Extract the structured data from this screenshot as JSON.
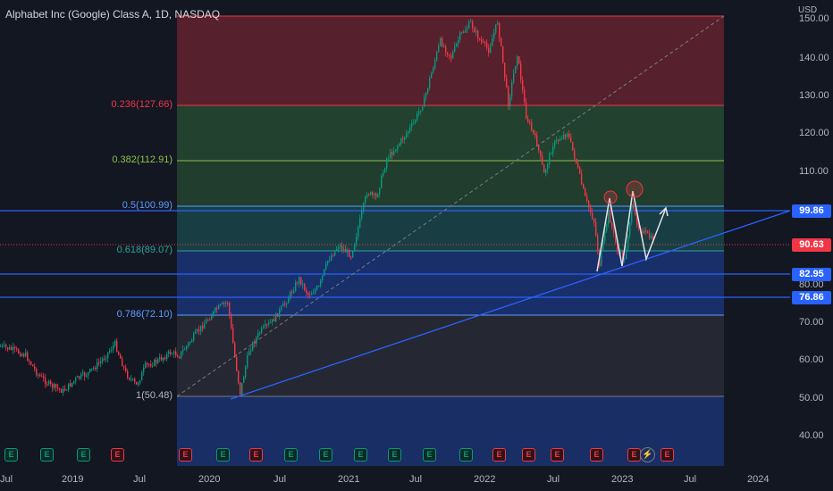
{
  "header": {
    "title": "Alphabet Inc (Google) Class A, 1D, NASDAQ",
    "currency": "USD"
  },
  "price_axis": {
    "labels": [
      "150.00",
      "140.00",
      "130.00",
      "120.00",
      "110.00",
      "100.00",
      "90.00",
      "80.00",
      "70.00",
      "60.00",
      "50.00",
      "40.00"
    ]
  },
  "time_axis": {
    "labels": [
      "Jul",
      "2019",
      "Jul",
      "2020",
      "Jul",
      "2021",
      "Jul",
      "2022",
      "Jul",
      "2023",
      "Jul",
      "2024"
    ]
  },
  "fibonacci": {
    "levels": [
      {
        "label": "0.236(127.66)",
        "color": "#f23645"
      },
      {
        "label": "0.382(112.91)",
        "color": "#8bc34a"
      },
      {
        "label": "0.5(100.99)",
        "color": "#5d9bff"
      },
      {
        "label": "0.618(89.07)",
        "color": "#26a69a"
      },
      {
        "label": "0.786(72.10)",
        "color": "#5d9bff"
      },
      {
        "label": "1(50.48)",
        "color": "#b2b5be"
      }
    ],
    "zone_colors": [
      "#f23645",
      "#4caf50",
      "#26a69a",
      "#2962ff",
      "#787b86",
      "#2962ff"
    ]
  },
  "price_tags": [
    {
      "value": "99.86",
      "color": "#2962ff"
    },
    {
      "value": "90.63",
      "color": "#f23645"
    },
    {
      "value": "82.95",
      "color": "#2962ff"
    },
    {
      "value": "76.86",
      "color": "#2962ff"
    }
  ],
  "colors": {
    "up": "#089981",
    "down": "#f23645",
    "background": "#131722",
    "trendline": "#2962ff"
  },
  "events": [
    {
      "label": "E",
      "type": "g"
    },
    {
      "label": "E",
      "type": "g"
    },
    {
      "label": "E",
      "type": "g"
    },
    {
      "label": "E",
      "type": "r"
    },
    {
      "label": "E",
      "type": "r"
    },
    {
      "label": "E",
      "type": "g"
    },
    {
      "label": "E",
      "type": "r"
    },
    {
      "label": "E",
      "type": "g"
    },
    {
      "label": "E",
      "type": "g"
    },
    {
      "label": "E",
      "type": "g"
    },
    {
      "label": "E",
      "type": "g"
    },
    {
      "label": "E",
      "type": "g"
    },
    {
      "label": "E",
      "type": "g"
    },
    {
      "label": "E",
      "type": "r"
    },
    {
      "label": "E",
      "type": "r"
    },
    {
      "label": "E",
      "type": "r"
    },
    {
      "label": "E",
      "type": "r"
    },
    {
      "label": "E",
      "type": "r"
    },
    {
      "label": "E",
      "type": "r"
    }
  ],
  "flash_icon": "lightning-icon"
}
